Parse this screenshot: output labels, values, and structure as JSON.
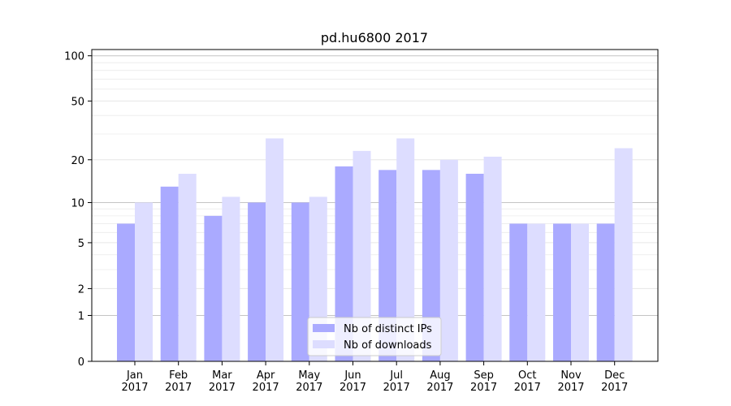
{
  "chart_data": {
    "type": "bar",
    "title": "pd.hu6800 2017",
    "xlabel": "",
    "ylabel": "",
    "yscale": "log(1+y)",
    "ylim": [
      0,
      110
    ],
    "yticks": [
      0,
      1,
      2,
      5,
      10,
      20,
      50,
      100
    ],
    "grid": true,
    "legend_position": "lower-center",
    "categories": [
      "Jan\n2017",
      "Feb\n2017",
      "Mar\n2017",
      "Apr\n2017",
      "May\n2017",
      "Jun\n2017",
      "Jul\n2017",
      "Aug\n2017",
      "Sep\n2017",
      "Oct\n2017",
      "Nov\n2017",
      "Dec\n2017"
    ],
    "series": [
      {
        "name": "Nb of distinct IPs",
        "color": "#aaaaff",
        "values": [
          7,
          13,
          8,
          10,
          10,
          18,
          17,
          17,
          16,
          7,
          7,
          7
        ]
      },
      {
        "name": "Nb of downloads",
        "color": "#ddddff",
        "values": [
          10,
          16,
          11,
          28,
          11,
          23,
          28,
          20,
          21,
          7,
          7,
          24
        ]
      }
    ]
  }
}
